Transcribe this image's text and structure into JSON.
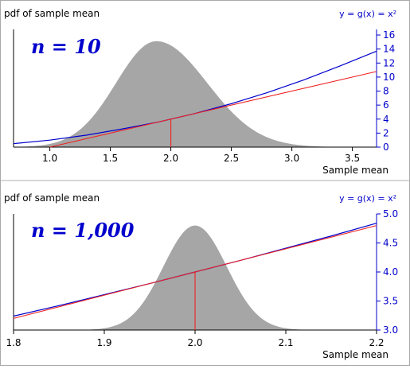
{
  "colors": {
    "density": "#a6a6a6",
    "curve": "#0000cc",
    "tangent": "#ee2222",
    "right_axis": "#0000cc",
    "axis": "#000000"
  },
  "chart_data": [
    {
      "type": "area",
      "title": "pdf of sample mean",
      "function_label": "y = g(x) = x²",
      "n_label": "n = 10",
      "xlabel": "Sample mean",
      "xlim": [
        0.7,
        3.7
      ],
      "xticks": [
        "1.0",
        "1.5",
        "2.0",
        "2.5",
        "3.0",
        "3.5"
      ],
      "yticks_right": [
        "0",
        "2",
        "4",
        "6",
        "8",
        "10",
        "12",
        "14",
        "16"
      ],
      "ylim_right": [
        0,
        16.8
      ],
      "grid": false,
      "density": {
        "mean": 2.0,
        "sd": 0.35,
        "peak_at": 1.88,
        "skew": "right"
      },
      "series": [
        {
          "kind": "curve",
          "x": [
            0.7,
            1.0,
            1.3,
            1.6,
            1.9,
            2.2,
            2.5,
            2.8,
            3.1,
            3.4,
            3.7
          ],
          "y": [
            0.5,
            1.0,
            1.7,
            2.6,
            3.6,
            4.8,
            6.2,
            7.8,
            9.6,
            11.6,
            13.7
          ]
        },
        {
          "kind": "tangent",
          "x": [
            1.0,
            3.7
          ],
          "y": [
            0.0,
            10.8
          ]
        },
        {
          "kind": "mean-line",
          "x": 2.0,
          "y": 4.0
        }
      ]
    },
    {
      "type": "area",
      "title": "pdf of sample mean",
      "function_label": "y = g(x) = x²",
      "n_label": "n = 1,000",
      "xlabel": "Sample mean",
      "xlim": [
        1.8,
        2.2
      ],
      "xticks": [
        "1.8",
        "1.9",
        "2.0",
        "2.1",
        "2.2"
      ],
      "yticks_right": [
        "3.0",
        "3.5",
        "4.0",
        "4.5",
        "5.0"
      ],
      "ylim_right": [
        3.0,
        5.0
      ],
      "grid": false,
      "density": {
        "mean": 2.0,
        "sd": 0.035,
        "peak_at": 2.0,
        "skew": "none"
      },
      "series": [
        {
          "kind": "curve",
          "x": [
            1.8,
            1.85,
            1.9,
            1.95,
            2.0,
            2.05,
            2.1,
            2.15,
            2.2
          ],
          "y": [
            3.24,
            3.42,
            3.61,
            3.8,
            4.0,
            4.2,
            4.41,
            4.62,
            4.84
          ]
        },
        {
          "kind": "tangent",
          "x": [
            1.8,
            2.2
          ],
          "y": [
            3.2,
            4.8
          ]
        },
        {
          "kind": "mean-line",
          "x": 2.0,
          "y": 4.0
        }
      ]
    }
  ]
}
